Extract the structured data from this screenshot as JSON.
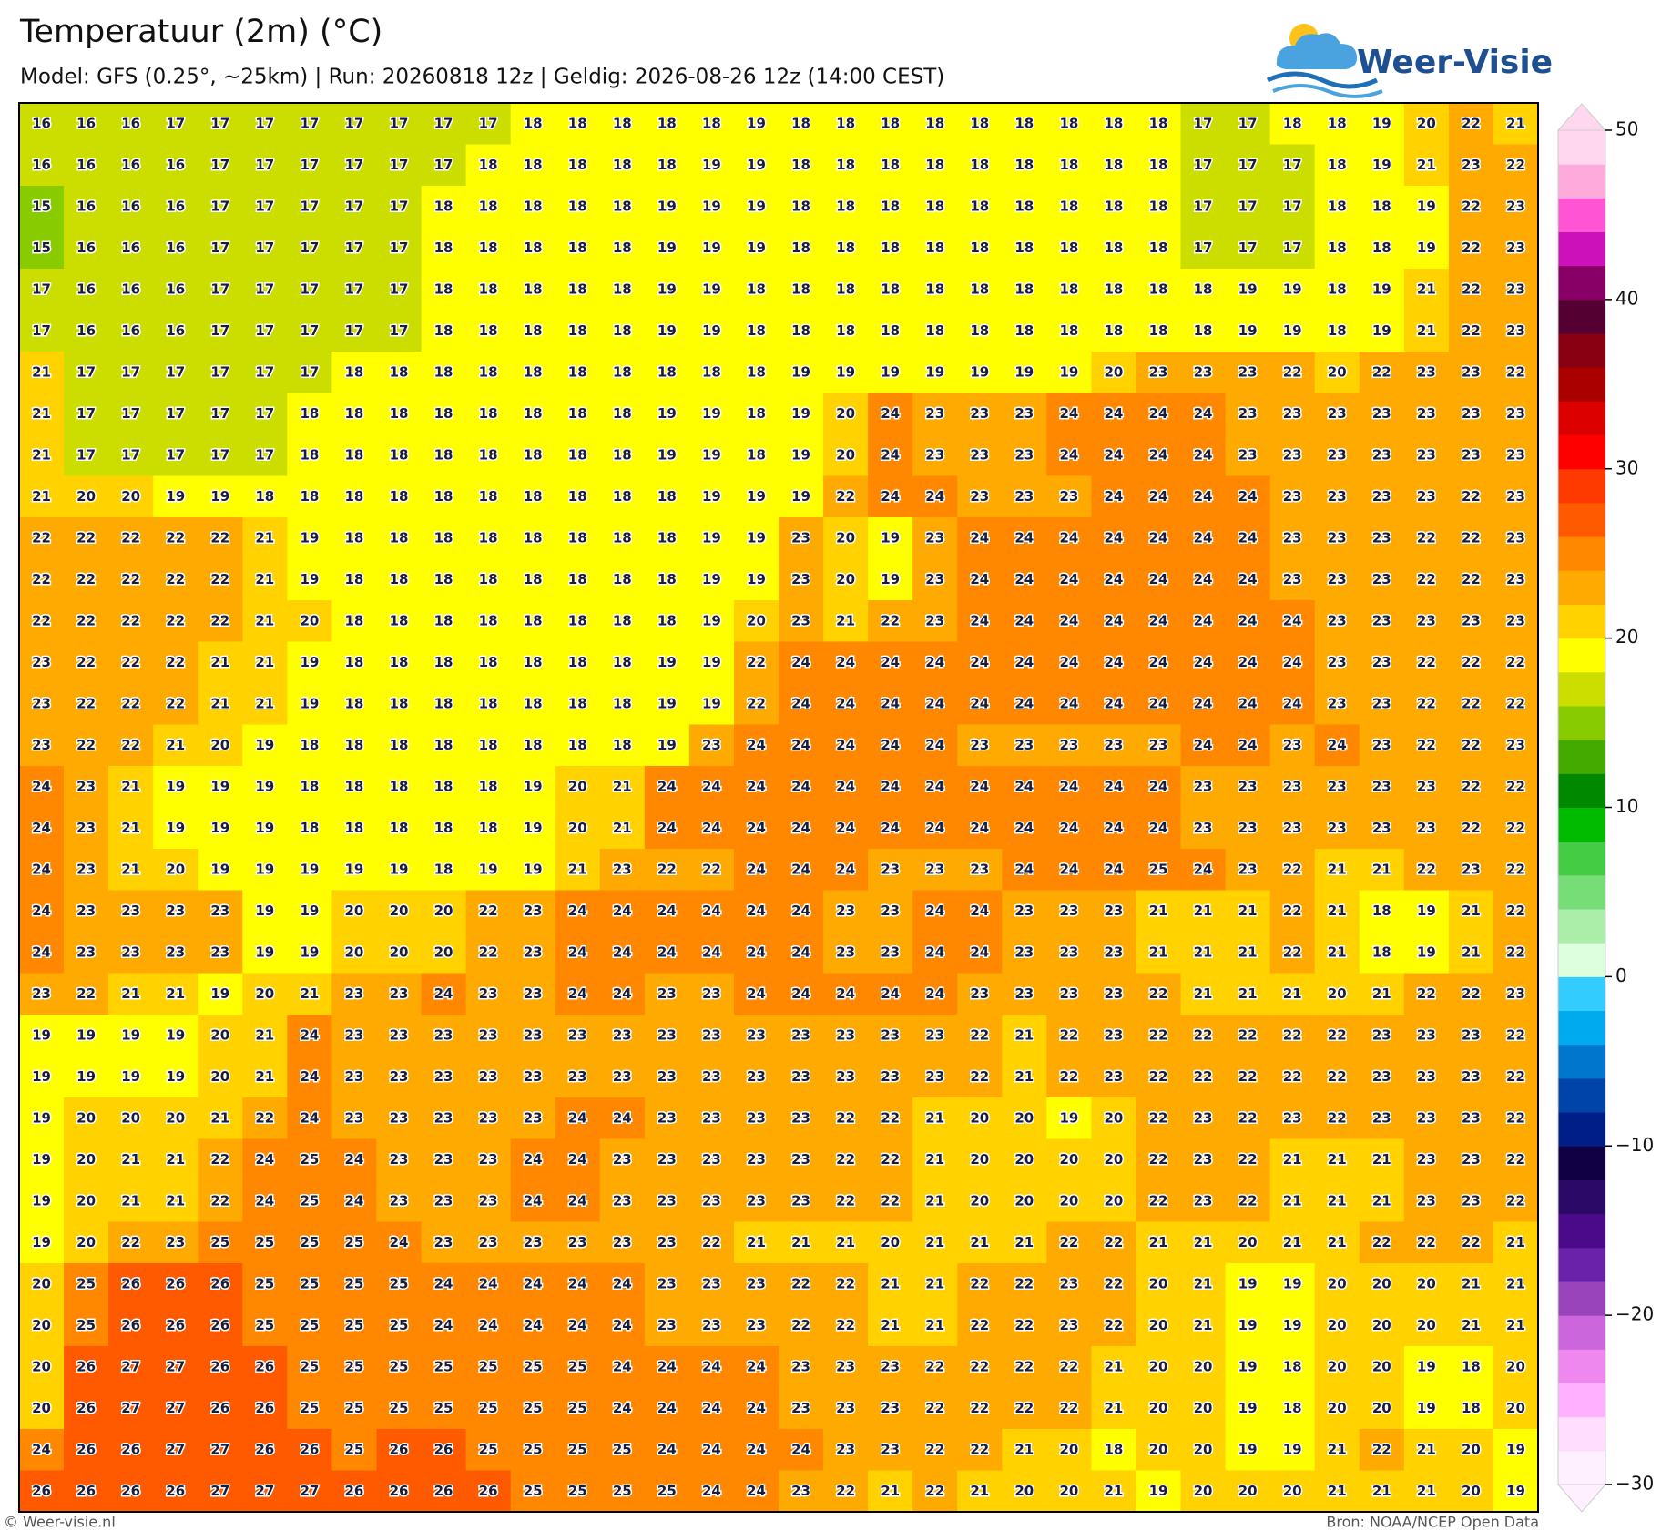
{
  "chart_data": {
    "type": "heatmap",
    "title": "Temperatuur (2m) (°C)",
    "subtitle": "Model: GFS (0.25°, ~25km)  |  Run: 20260818 12z  |  Geldig: 2026-08-26 12z (14:00 CEST)",
    "values": [
      [
        16,
        16,
        16,
        17,
        17,
        17,
        17,
        17,
        17,
        17,
        17,
        18,
        18,
        18,
        18,
        18,
        19,
        18,
        18,
        18,
        18,
        18,
        18,
        18,
        18,
        18,
        17,
        17,
        18,
        18,
        19,
        20,
        22,
        21
      ],
      [
        16,
        16,
        16,
        16,
        17,
        17,
        17,
        17,
        17,
        17,
        18,
        18,
        18,
        18,
        18,
        19,
        19,
        18,
        18,
        18,
        18,
        18,
        18,
        18,
        18,
        18,
        17,
        17,
        17,
        18,
        19,
        21,
        23,
        22
      ],
      [
        15,
        16,
        16,
        16,
        17,
        17,
        17,
        17,
        17,
        18,
        18,
        18,
        18,
        18,
        19,
        19,
        19,
        18,
        18,
        18,
        18,
        18,
        18,
        18,
        18,
        18,
        17,
        17,
        17,
        18,
        18,
        19,
        22,
        23
      ],
      [
        15,
        16,
        16,
        16,
        17,
        17,
        17,
        17,
        17,
        18,
        18,
        18,
        18,
        18,
        19,
        19,
        19,
        18,
        18,
        18,
        18,
        18,
        18,
        18,
        18,
        18,
        17,
        17,
        17,
        18,
        18,
        19,
        22,
        23
      ],
      [
        17,
        16,
        16,
        16,
        17,
        17,
        17,
        17,
        17,
        18,
        18,
        18,
        18,
        18,
        19,
        19,
        18,
        18,
        18,
        18,
        18,
        18,
        18,
        18,
        18,
        18,
        18,
        19,
        19,
        18,
        19,
        21,
        22,
        23
      ],
      [
        17,
        16,
        16,
        16,
        17,
        17,
        17,
        17,
        17,
        18,
        18,
        18,
        18,
        18,
        19,
        19,
        18,
        18,
        18,
        18,
        18,
        18,
        18,
        18,
        18,
        18,
        18,
        19,
        19,
        18,
        19,
        21,
        22,
        23
      ],
      [
        21,
        17,
        17,
        17,
        17,
        17,
        17,
        18,
        18,
        18,
        18,
        18,
        18,
        18,
        18,
        18,
        18,
        19,
        19,
        19,
        19,
        19,
        19,
        19,
        20,
        23,
        23,
        23,
        22,
        20,
        22,
        23,
        23,
        22
      ],
      [
        21,
        17,
        17,
        17,
        17,
        17,
        18,
        18,
        18,
        18,
        18,
        18,
        18,
        18,
        19,
        19,
        18,
        19,
        20,
        24,
        23,
        23,
        23,
        24,
        24,
        24,
        24,
        23,
        23,
        23,
        23,
        23,
        23,
        23
      ],
      [
        21,
        17,
        17,
        17,
        17,
        17,
        18,
        18,
        18,
        18,
        18,
        18,
        18,
        18,
        19,
        19,
        18,
        19,
        20,
        24,
        23,
        23,
        23,
        24,
        24,
        24,
        24,
        23,
        23,
        23,
        23,
        23,
        23,
        23
      ],
      [
        21,
        20,
        20,
        19,
        19,
        18,
        18,
        18,
        18,
        18,
        18,
        18,
        18,
        18,
        18,
        19,
        19,
        19,
        22,
        24,
        24,
        23,
        23,
        23,
        24,
        24,
        24,
        24,
        23,
        23,
        23,
        23,
        22,
        23
      ],
      [
        22,
        22,
        22,
        22,
        22,
        21,
        19,
        18,
        18,
        18,
        18,
        18,
        18,
        18,
        18,
        19,
        19,
        23,
        20,
        19,
        23,
        24,
        24,
        24,
        24,
        24,
        24,
        24,
        23,
        23,
        23,
        22,
        22,
        23
      ],
      [
        22,
        22,
        22,
        22,
        22,
        21,
        19,
        18,
        18,
        18,
        18,
        18,
        18,
        18,
        18,
        19,
        19,
        23,
        20,
        19,
        23,
        24,
        24,
        24,
        24,
        24,
        24,
        24,
        23,
        23,
        23,
        22,
        22,
        23
      ],
      [
        22,
        22,
        22,
        22,
        22,
        21,
        20,
        18,
        18,
        18,
        18,
        18,
        18,
        18,
        18,
        19,
        20,
        23,
        21,
        22,
        23,
        24,
        24,
        24,
        24,
        24,
        24,
        24,
        24,
        23,
        23,
        23,
        23,
        23
      ],
      [
        23,
        22,
        22,
        22,
        21,
        21,
        19,
        18,
        18,
        18,
        18,
        18,
        18,
        18,
        19,
        19,
        22,
        24,
        24,
        24,
        24,
        24,
        24,
        24,
        24,
        24,
        24,
        24,
        24,
        23,
        23,
        22,
        22,
        22
      ],
      [
        23,
        22,
        22,
        22,
        21,
        21,
        19,
        18,
        18,
        18,
        18,
        18,
        18,
        18,
        19,
        19,
        22,
        24,
        24,
        24,
        24,
        24,
        24,
        24,
        24,
        24,
        24,
        24,
        24,
        23,
        23,
        22,
        22,
        22
      ],
      [
        23,
        22,
        22,
        21,
        20,
        19,
        18,
        18,
        18,
        18,
        18,
        18,
        18,
        18,
        19,
        23,
        24,
        24,
        24,
        24,
        24,
        23,
        23,
        23,
        23,
        23,
        24,
        24,
        23,
        24,
        23,
        22,
        22,
        23
      ],
      [
        24,
        23,
        21,
        19,
        19,
        19,
        18,
        18,
        18,
        18,
        18,
        19,
        20,
        21,
        24,
        24,
        24,
        24,
        24,
        24,
        24,
        24,
        24,
        24,
        24,
        24,
        23,
        23,
        23,
        23,
        23,
        23,
        22,
        22
      ],
      [
        24,
        23,
        21,
        19,
        19,
        19,
        18,
        18,
        18,
        18,
        18,
        19,
        20,
        21,
        24,
        24,
        24,
        24,
        24,
        24,
        24,
        24,
        24,
        24,
        24,
        24,
        23,
        23,
        23,
        23,
        23,
        23,
        22,
        22
      ],
      [
        24,
        23,
        21,
        20,
        19,
        19,
        19,
        19,
        19,
        18,
        19,
        19,
        21,
        23,
        22,
        22,
        24,
        24,
        24,
        23,
        23,
        23,
        24,
        24,
        24,
        25,
        24,
        23,
        22,
        21,
        21,
        22,
        23,
        22
      ],
      [
        24,
        23,
        23,
        23,
        23,
        19,
        19,
        20,
        20,
        20,
        22,
        23,
        24,
        24,
        24,
        24,
        24,
        24,
        23,
        23,
        24,
        24,
        23,
        23,
        23,
        21,
        21,
        21,
        22,
        21,
        18,
        19,
        21,
        22
      ],
      [
        24,
        23,
        23,
        23,
        23,
        19,
        19,
        20,
        20,
        20,
        22,
        23,
        24,
        24,
        24,
        24,
        24,
        24,
        23,
        23,
        24,
        24,
        23,
        23,
        23,
        21,
        21,
        21,
        22,
        21,
        18,
        19,
        21,
        22
      ],
      [
        23,
        22,
        21,
        21,
        19,
        20,
        21,
        23,
        23,
        24,
        23,
        23,
        24,
        24,
        23,
        23,
        24,
        24,
        24,
        24,
        24,
        23,
        23,
        23,
        23,
        22,
        21,
        21,
        21,
        20,
        21,
        22,
        22,
        23
      ],
      [
        19,
        19,
        19,
        19,
        20,
        21,
        24,
        23,
        23,
        23,
        23,
        23,
        23,
        23,
        23,
        23,
        23,
        23,
        23,
        23,
        23,
        22,
        21,
        22,
        23,
        22,
        22,
        22,
        22,
        22,
        23,
        23,
        23,
        22
      ],
      [
        19,
        19,
        19,
        19,
        20,
        21,
        24,
        23,
        23,
        23,
        23,
        23,
        23,
        23,
        23,
        23,
        23,
        23,
        23,
        23,
        23,
        22,
        21,
        22,
        23,
        22,
        22,
        22,
        22,
        22,
        23,
        23,
        23,
        22
      ],
      [
        19,
        20,
        20,
        20,
        21,
        22,
        24,
        23,
        23,
        23,
        23,
        23,
        24,
        24,
        23,
        23,
        23,
        23,
        22,
        22,
        21,
        20,
        20,
        19,
        20,
        22,
        23,
        22,
        23,
        22,
        23,
        23,
        23,
        22
      ],
      [
        19,
        20,
        21,
        21,
        22,
        24,
        25,
        24,
        23,
        23,
        23,
        24,
        24,
        23,
        23,
        23,
        23,
        23,
        22,
        22,
        21,
        20,
        20,
        20,
        20,
        22,
        23,
        22,
        21,
        21,
        21,
        23,
        23,
        22
      ],
      [
        19,
        20,
        21,
        21,
        22,
        24,
        25,
        24,
        23,
        23,
        23,
        24,
        24,
        23,
        23,
        23,
        23,
        23,
        22,
        22,
        21,
        20,
        20,
        20,
        20,
        22,
        23,
        22,
        21,
        21,
        21,
        23,
        23,
        22
      ],
      [
        19,
        20,
        22,
        23,
        25,
        25,
        25,
        25,
        24,
        23,
        23,
        23,
        23,
        23,
        23,
        22,
        21,
        21,
        21,
        20,
        21,
        21,
        21,
        22,
        22,
        21,
        21,
        20,
        21,
        21,
        22,
        22,
        22,
        21
      ],
      [
        20,
        25,
        26,
        26,
        26,
        25,
        25,
        25,
        25,
        24,
        24,
        24,
        24,
        24,
        23,
        23,
        23,
        22,
        22,
        21,
        21,
        22,
        22,
        23,
        22,
        20,
        21,
        19,
        19,
        20,
        20,
        20,
        21,
        21
      ],
      [
        20,
        25,
        26,
        26,
        26,
        25,
        25,
        25,
        25,
        24,
        24,
        24,
        24,
        24,
        23,
        23,
        23,
        22,
        22,
        21,
        21,
        22,
        22,
        23,
        22,
        20,
        21,
        19,
        19,
        20,
        20,
        20,
        21,
        21
      ],
      [
        20,
        26,
        27,
        27,
        26,
        26,
        25,
        25,
        25,
        25,
        25,
        25,
        25,
        24,
        24,
        24,
        24,
        23,
        23,
        23,
        22,
        22,
        22,
        22,
        21,
        20,
        20,
        19,
        18,
        20,
        20,
        19,
        18,
        20
      ],
      [
        20,
        26,
        27,
        27,
        26,
        26,
        25,
        25,
        25,
        25,
        25,
        25,
        25,
        24,
        24,
        24,
        24,
        23,
        23,
        23,
        22,
        22,
        22,
        22,
        21,
        20,
        20,
        19,
        18,
        20,
        20,
        19,
        18,
        20
      ],
      [
        24,
        26,
        26,
        27,
        27,
        26,
        26,
        25,
        26,
        26,
        25,
        25,
        25,
        25,
        24,
        24,
        24,
        24,
        23,
        23,
        22,
        22,
        21,
        20,
        18,
        20,
        20,
        19,
        19,
        21,
        22,
        21,
        20,
        19
      ],
      [
        26,
        26,
        26,
        26,
        27,
        27,
        27,
        26,
        26,
        26,
        26,
        25,
        25,
        25,
        25,
        24,
        24,
        23,
        22,
        21,
        22,
        21,
        20,
        20,
        21,
        19,
        20,
        20,
        20,
        21,
        21,
        21,
        20,
        19
      ]
    ],
    "colorbar": {
      "lim": [
        -30,
        50
      ],
      "ticks": [
        {
          "value": -30,
          "label": "−30"
        },
        {
          "value": -20,
          "label": "−20"
        },
        {
          "value": -10,
          "label": "−10"
        },
        0,
        10,
        20,
        30,
        40,
        50
      ],
      "colors": [
        "#fff0ff",
        "#ffddff",
        "#ffb0ff",
        "#ee88ee",
        "#cc66dd",
        "#9944bb",
        "#6a22aa",
        "#4a0a8a",
        "#2a0a66",
        "#110044",
        "#001e88",
        "#0044aa",
        "#0077cc",
        "#00aaee",
        "#33ccff",
        "#ddffdd",
        "#aaeeaa",
        "#77dd77",
        "#44cc44",
        "#00bb00",
        "#008800",
        "#44aa00",
        "#88cc00",
        "#ccdd00",
        "#ffff00",
        "#ffd200",
        "#ffaa00",
        "#ff8800",
        "#ff5a00",
        "#ff3a00",
        "#ff0000",
        "#dd0000",
        "#aa0000",
        "#880011",
        "#550033",
        "#880066",
        "#cc11bb",
        "#ff55d4",
        "#ffaadc",
        "#ffd8f0"
      ]
    }
  },
  "logo": "Weer-Visie",
  "footer": {
    "left": "© Weer-visie.nl",
    "right": "Bron: NOAA/NCEP Open Data"
  }
}
